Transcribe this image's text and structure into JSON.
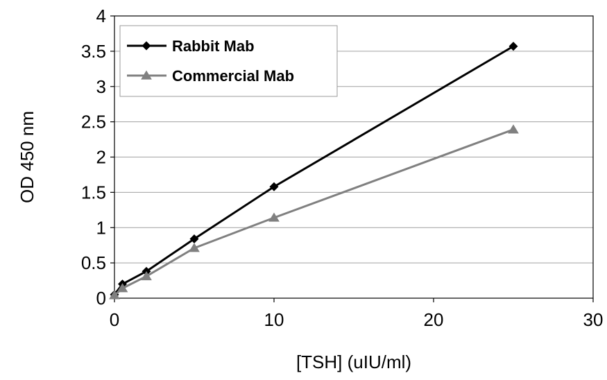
{
  "chart_data": {
    "type": "line",
    "title": "",
    "xlabel": "[TSH] (uIU/ml)",
    "ylabel": "OD 450 nm",
    "xlim": [
      0,
      30
    ],
    "ylim": [
      0,
      4
    ],
    "xticks": [
      "0",
      "10",
      "20",
      "30"
    ],
    "yticks": [
      "0",
      "0.5",
      "1",
      "1.5",
      "2",
      "2.5",
      "3",
      "3.5",
      "4"
    ],
    "grid": "horizontal",
    "legend_position": "top-left",
    "series": [
      {
        "name": "Rabbit Mab",
        "color": "#000000",
        "marker": "diamond",
        "x": [
          0,
          0.5,
          2,
          5,
          10,
          25
        ],
        "y": [
          0.05,
          0.2,
          0.38,
          0.84,
          1.58,
          3.57
        ]
      },
      {
        "name": "Commercial Mab",
        "color": "#808080",
        "marker": "triangle",
        "x": [
          0,
          0.5,
          2,
          5,
          10,
          25
        ],
        "y": [
          0.04,
          0.14,
          0.31,
          0.71,
          1.14,
          2.39
        ]
      }
    ]
  }
}
